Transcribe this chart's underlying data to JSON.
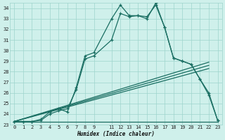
{
  "xlabel": "Humidex (Indice chaleur)",
  "background_color": "#cff0eb",
  "grid_color": "#9ed4cc",
  "line_color": "#1a6e62",
  "xlim": [
    -0.5,
    23.5
  ],
  "ylim": [
    23,
    34.5
  ],
  "yticks": [
    23,
    24,
    25,
    26,
    27,
    28,
    29,
    30,
    31,
    32,
    33,
    34
  ],
  "xticks": [
    0,
    1,
    2,
    3,
    4,
    5,
    6,
    7,
    8,
    9,
    11,
    12,
    13,
    14,
    15,
    16,
    17,
    18,
    19,
    20,
    21,
    22,
    23
  ],
  "xtick_labels": [
    "0",
    "1",
    "2",
    "3",
    "4",
    "5",
    "6",
    "7",
    "8",
    "9",
    "11",
    "12",
    "13",
    "14",
    "15",
    "16",
    "17",
    "18",
    "19",
    "20",
    "21",
    "22",
    "23"
  ],
  "flat_line_x": [
    0,
    23
  ],
  "flat_line_y": [
    23.3,
    23.3
  ],
  "curve_x": [
    0,
    1,
    2,
    3,
    4,
    5,
    6,
    7,
    8,
    9,
    11,
    12,
    13,
    14,
    15,
    16,
    17,
    18,
    19,
    20,
    21,
    22,
    23
  ],
  "curve_y": [
    23.3,
    23.3,
    23.3,
    23.5,
    24.2,
    24.5,
    24.2,
    26.5,
    29.5,
    29.8,
    33.0,
    34.3,
    33.3,
    33.3,
    33.2,
    34.3,
    32.2,
    29.3,
    29.0,
    28.7,
    27.3,
    26.0,
    23.4
  ],
  "curve2_x": [
    0,
    1,
    2,
    3,
    4,
    5,
    6,
    7,
    8,
    9,
    11,
    12,
    13,
    14,
    15,
    16,
    17,
    18,
    19,
    20,
    21,
    22,
    23
  ],
  "curve2_y": [
    23.3,
    23.3,
    23.3,
    23.4,
    24.0,
    24.3,
    24.5,
    26.3,
    29.2,
    29.5,
    31.0,
    33.5,
    33.2,
    33.3,
    33.0,
    34.5,
    32.2,
    29.3,
    29.0,
    28.7,
    27.3,
    25.8,
    23.4
  ],
  "diag_lines": [
    {
      "x": [
        0,
        22
      ],
      "y": [
        23.3,
        28.3
      ]
    },
    {
      "x": [
        0,
        22
      ],
      "y": [
        23.3,
        28.6
      ]
    },
    {
      "x": [
        0,
        22
      ],
      "y": [
        23.3,
        28.9
      ]
    }
  ]
}
